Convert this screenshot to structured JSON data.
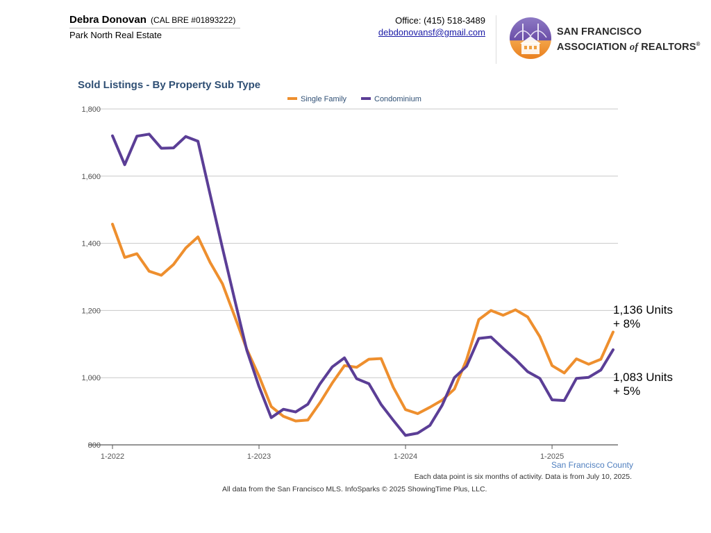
{
  "header": {
    "agent_name": "Debra Donovan",
    "agent_license": "(CAL BRE #01893222)",
    "company": "Park North Real Estate",
    "office_phone": "Office: (415) 518-3489",
    "email": "debdonovansf@gmail.com",
    "logo_line1": "SAN FRANCISCO",
    "logo_line2_a": "ASSOCIATION ",
    "logo_line2_of": "of",
    "logo_line2_b": " REALTORS",
    "logo_reg": "®"
  },
  "colors": {
    "single_family": "#ee8f2e",
    "condominium": "#5b3e96",
    "title": "#2f4f74",
    "grid": "#c8c8c8",
    "axis_text": "#555555"
  },
  "chart_data": {
    "type": "line",
    "title": "Sold Listings - By Property Sub Type",
    "xlabel": "",
    "ylabel": "",
    "ylim": [
      800,
      1800
    ],
    "yticks": [
      800,
      1000,
      1200,
      1400,
      1600,
      1800
    ],
    "ytick_labels": [
      "800",
      "1,000",
      "1,200",
      "1,400",
      "1,600",
      "1,800"
    ],
    "xlim": [
      0,
      42
    ],
    "xticks": [
      0,
      12,
      24,
      36
    ],
    "xtick_labels": [
      "1-2022",
      "1-2023",
      "1-2024",
      "1-2025"
    ],
    "legend": "top-center",
    "series": [
      {
        "name": "Single Family",
        "color": "#ee8f2e",
        "values": [
          1457,
          1358,
          1369,
          1317,
          1305,
          1337,
          1386,
          1419,
          1343,
          1280,
          1183,
          1085,
          1005,
          914,
          885,
          871,
          874,
          926,
          984,
          1036,
          1031,
          1055,
          1057,
          971,
          905,
          893,
          912,
          933,
          966,
          1054,
          1173,
          1200,
          1186,
          1202,
          1181,
          1122,
          1036,
          1014,
          1056,
          1040,
          1055,
          1136
        ]
      },
      {
        "name": "Condominium",
        "color": "#5b3e96",
        "values": [
          1720,
          1634,
          1719,
          1725,
          1683,
          1684,
          1718,
          1704,
          1545,
          1387,
          1233,
          1082,
          974,
          881,
          906,
          898,
          921,
          982,
          1032,
          1059,
          997,
          982,
          920,
          873,
          828,
          835,
          858,
          918,
          1000,
          1034,
          1117,
          1121,
          1087,
          1055,
          1018,
          998,
          934,
          932,
          998,
          1001,
          1023,
          1083
        ]
      }
    ],
    "annotations": [
      {
        "series": "Single Family",
        "line1": "1,136 Units",
        "line2": "+ 8%"
      },
      {
        "series": "Condominium",
        "line1": "1,083 Units",
        "line2": "+ 5%"
      }
    ]
  },
  "footer": {
    "county": "San Francisco County",
    "note": "Each data point is six months of activity. Data is from July 10, 2025.",
    "source": "All data from the San Francisco MLS. InfoSparks © 2025 ShowingTime Plus, LLC."
  }
}
